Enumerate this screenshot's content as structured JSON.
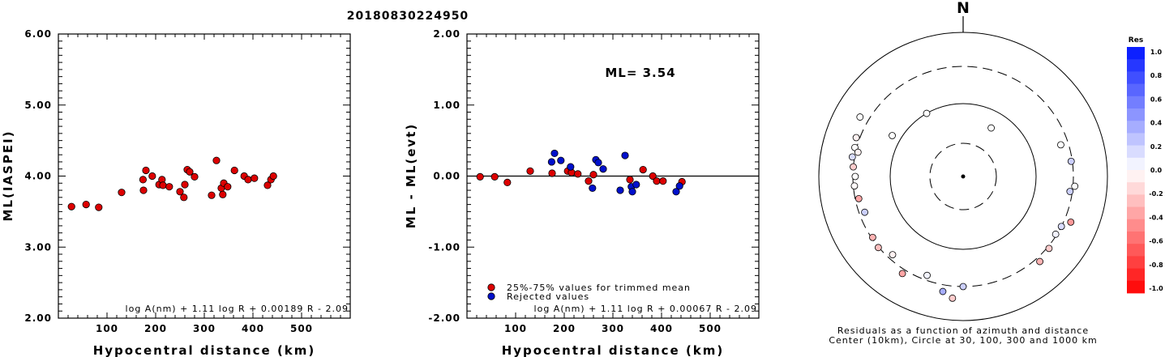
{
  "event_id": "20180830224950",
  "colors": {
    "trimmed": "#dd0000",
    "rejected": "#0010cc",
    "axis": "#000000"
  },
  "chart_data": [
    {
      "type": "scatter",
      "title": "",
      "xlabel": "Hypocentral distance (km)",
      "ylabel": "ML(IASPEI)",
      "xlim": [
        0,
        600
      ],
      "ylim": [
        2.0,
        6.0
      ],
      "x_ticks": [
        "100",
        "200",
        "300",
        "400",
        "500"
      ],
      "y_ticks": [
        "2.00",
        "3.00",
        "4.00",
        "5.00",
        "6.00"
      ],
      "formula": "log A(nm) + 1.11 log R + 0.00189 R - 2.09",
      "points": [
        [
          27,
          3.57
        ],
        [
          57,
          3.6
        ],
        [
          83,
          3.56
        ],
        [
          130,
          3.77
        ],
        [
          174,
          3.95
        ],
        [
          175,
          3.8
        ],
        [
          180,
          4.08
        ],
        [
          193,
          4.0
        ],
        [
          207,
          3.88
        ],
        [
          213,
          3.95
        ],
        [
          215,
          3.87
        ],
        [
          228,
          3.85
        ],
        [
          250,
          3.78
        ],
        [
          258,
          3.7
        ],
        [
          260,
          3.88
        ],
        [
          265,
          4.09
        ],
        [
          270,
          4.06
        ],
        [
          280,
          3.99
        ],
        [
          315,
          3.73
        ],
        [
          325,
          4.22
        ],
        [
          335,
          3.83
        ],
        [
          338,
          3.74
        ],
        [
          340,
          3.9
        ],
        [
          348,
          3.85
        ],
        [
          362,
          4.08
        ],
        [
          382,
          4.0
        ],
        [
          390,
          3.95
        ],
        [
          403,
          3.97
        ],
        [
          430,
          3.87
        ],
        [
          437,
          3.95
        ],
        [
          442,
          4.0
        ]
      ]
    },
    {
      "type": "scatter",
      "title": "",
      "xlabel": "Hypocentral distance (km)",
      "ylabel": "ML - ML(evt)",
      "xlim": [
        0,
        600
      ],
      "ylim": [
        -2.0,
        2.0
      ],
      "x_ticks": [
        "100",
        "200",
        "300",
        "400",
        "500"
      ],
      "y_ticks": [
        "-2.00",
        "-1.00",
        "0.00",
        "1.00",
        "2.00"
      ],
      "annotation": "ML= 3.54",
      "formula": "log A(nm) + 1.11 log R + 0.00067 R - 2.09",
      "legend": [
        {
          "name": "25%-75% values for trimmed mean",
          "group": "trimmed"
        },
        {
          "name": "Rejected values",
          "group": "rejected"
        }
      ],
      "trimmed": [
        [
          27,
          -0.01
        ],
        [
          57,
          -0.01
        ],
        [
          83,
          -0.09
        ],
        [
          130,
          0.07
        ],
        [
          175,
          0.04
        ],
        [
          207,
          0.07
        ],
        [
          215,
          0.05
        ],
        [
          228,
          0.03
        ],
        [
          250,
          -0.07
        ],
        [
          260,
          0.02
        ],
        [
          335,
          -0.05
        ],
        [
          362,
          0.09
        ],
        [
          382,
          0.0
        ],
        [
          390,
          -0.07
        ],
        [
          403,
          -0.07
        ],
        [
          442,
          -0.08
        ]
      ],
      "rejected": [
        [
          174,
          0.2
        ],
        [
          180,
          0.32
        ],
        [
          193,
          0.22
        ],
        [
          213,
          0.13
        ],
        [
          258,
          -0.17
        ],
        [
          265,
          0.23
        ],
        [
          270,
          0.19
        ],
        [
          280,
          0.1
        ],
        [
          315,
          -0.2
        ],
        [
          325,
          0.29
        ],
        [
          338,
          -0.15
        ],
        [
          340,
          -0.22
        ],
        [
          348,
          -0.12
        ],
        [
          430,
          -0.22
        ],
        [
          437,
          -0.14
        ]
      ]
    },
    {
      "type": "scatter",
      "subtype": "polar",
      "north_label": "N",
      "caption_1": "Residuals as a function of azimuth and distance",
      "caption_2": "Center (10km), Circle at 30, 100, 300 and 1000 km",
      "rings_km": [
        30,
        100,
        300,
        1000
      ],
      "color_scale": {
        "title": "Res",
        "range": [
          -1.0,
          1.0
        ],
        "tick_labels": [
          "1.0",
          "0.8",
          "0.6",
          "0.4",
          "0.2",
          "0.0",
          "-0.2",
          "-0.4",
          "-0.6",
          "-0.8",
          "-1.0"
        ]
      },
      "points": [
        {
          "az": 300,
          "km": 130,
          "res": 0.0
        },
        {
          "az": 30,
          "km": 60,
          "res": 0.0
        },
        {
          "az": 330,
          "km": 100,
          "res": 0.0
        },
        {
          "az": 285,
          "km": 320,
          "res": 0.0
        },
        {
          "az": 290,
          "km": 340,
          "res": -0.05
        },
        {
          "az": 280,
          "km": 325,
          "res": 0.15
        },
        {
          "az": 283,
          "km": 280,
          "res": -0.05
        },
        {
          "az": 275,
          "km": 300,
          "res": -0.2
        },
        {
          "az": 270,
          "km": 280,
          "res": 0.0
        },
        {
          "az": 265,
          "km": 290,
          "res": -0.02
        },
        {
          "az": 258,
          "km": 270,
          "res": -0.35
        },
        {
          "az": 250,
          "km": 255,
          "res": 0.2
        },
        {
          "az": 236,
          "km": 290,
          "res": -0.3
        },
        {
          "az": 230,
          "km": 305,
          "res": -0.25
        },
        {
          "az": 222,
          "km": 260,
          "res": -0.05
        },
        {
          "az": 212,
          "km": 350,
          "res": -0.35
        },
        {
          "az": 200,
          "km": 260,
          "res": 0.05
        },
        {
          "az": 190,
          "km": 380,
          "res": 0.35
        },
        {
          "az": 185,
          "km": 460,
          "res": -0.2
        },
        {
          "az": 180,
          "km": 300,
          "res": 0.2
        },
        {
          "az": 138,
          "km": 350,
          "res": -0.3
        },
        {
          "az": 130,
          "km": 320,
          "res": -0.2
        },
        {
          "az": 122,
          "km": 290,
          "res": 0.05
        },
        {
          "az": 117,
          "km": 300,
          "res": 0.15
        },
        {
          "az": 113,
          "km": 380,
          "res": -0.4
        },
        {
          "az": 98,
          "km": 280,
          "res": 0.2
        },
        {
          "az": 95,
          "km": 320,
          "res": 0.0
        },
        {
          "az": 82,
          "km": 290,
          "res": 0.2
        },
        {
          "az": 72,
          "km": 240,
          "res": 0.0
        },
        {
          "az": 300,
          "km": 410,
          "res": 0.0
        }
      ]
    }
  ]
}
